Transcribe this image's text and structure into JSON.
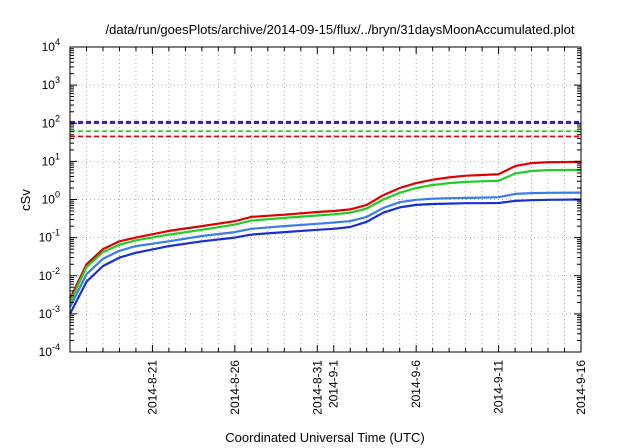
{
  "chart_data": {
    "type": "line",
    "title": "/data/run/goesPlots/archive/2014-09-15/flux/../bryn/31daysMoonAccumulated.plot",
    "xlabel": "Coordinated Universal Time (UTC)",
    "ylabel": "cSv",
    "y_scale": "log",
    "ylim": [
      0.0001,
      10000
    ],
    "xlim": [
      "2014-08-16",
      "2014-09-16"
    ],
    "grid": true,
    "legend": "none",
    "y_ticks": [
      {
        "base": "10",
        "exp": "-4",
        "value": 0.0001
      },
      {
        "base": "10",
        "exp": "-3",
        "value": 0.001
      },
      {
        "base": "10",
        "exp": "-2",
        "value": 0.01
      },
      {
        "base": "10",
        "exp": "-1",
        "value": 0.1
      },
      {
        "base": "10",
        "exp": "0",
        "value": 1
      },
      {
        "base": "10",
        "exp": "1",
        "value": 10
      },
      {
        "base": "10",
        "exp": "2",
        "value": 100
      },
      {
        "base": "10",
        "exp": "3",
        "value": 1000
      },
      {
        "base": "10",
        "exp": "4",
        "value": 10000
      }
    ],
    "x_ticks": [
      {
        "label": "2014-8-21",
        "date": "2014-08-21"
      },
      {
        "label": "2014-8-26",
        "date": "2014-08-26"
      },
      {
        "label": "2014-8-31",
        "date": "2014-08-31"
      },
      {
        "label": "2014-9-1",
        "date": "2014-09-01"
      },
      {
        "label": "2014-9-6",
        "date": "2014-09-06"
      },
      {
        "label": "2014-9-11",
        "date": "2014-09-11"
      },
      {
        "label": "2014-9-16",
        "date": "2014-09-16"
      }
    ],
    "reference_lines": [
      {
        "value": 110,
        "color": "#6600cc"
      },
      {
        "value": 100,
        "color": "#1f2fd6"
      },
      {
        "value": 62,
        "color": "#22cc22"
      },
      {
        "value": 45,
        "color": "#e00000"
      }
    ],
    "series": [
      {
        "color": "#e00000",
        "points": [
          [
            "2014-08-16",
            0.0025
          ],
          [
            "2014-08-17",
            0.02
          ],
          [
            "2014-08-18",
            0.05
          ],
          [
            "2014-08-19",
            0.08
          ],
          [
            "2014-08-20",
            0.1
          ],
          [
            "2014-08-22",
            0.15
          ],
          [
            "2014-08-24",
            0.2
          ],
          [
            "2014-08-26",
            0.27
          ],
          [
            "2014-08-27",
            0.35
          ],
          [
            "2014-08-29",
            0.4
          ],
          [
            "2014-08-31",
            0.47
          ],
          [
            "2014-09-01",
            0.5
          ],
          [
            "2014-09-02",
            0.55
          ],
          [
            "2014-09-03",
            0.72
          ],
          [
            "2014-09-04",
            1.3
          ],
          [
            "2014-09-05",
            2.0
          ],
          [
            "2014-09-06",
            2.7
          ],
          [
            "2014-09-07",
            3.3
          ],
          [
            "2014-09-08",
            3.8
          ],
          [
            "2014-09-09",
            4.2
          ],
          [
            "2014-09-10",
            4.4
          ],
          [
            "2014-09-11",
            4.6
          ],
          [
            "2014-09-12",
            7.5
          ],
          [
            "2014-09-13",
            9.0
          ],
          [
            "2014-09-14",
            9.5
          ],
          [
            "2014-09-16",
            9.7
          ]
        ]
      },
      {
        "color": "#22cc22",
        "points": [
          [
            "2014-08-16",
            0.002
          ],
          [
            "2014-08-17",
            0.017
          ],
          [
            "2014-08-18",
            0.042
          ],
          [
            "2014-08-19",
            0.065
          ],
          [
            "2014-08-20",
            0.085
          ],
          [
            "2014-08-22",
            0.12
          ],
          [
            "2014-08-24",
            0.16
          ],
          [
            "2014-08-26",
            0.22
          ],
          [
            "2014-08-27",
            0.28
          ],
          [
            "2014-08-29",
            0.33
          ],
          [
            "2014-08-31",
            0.38
          ],
          [
            "2014-09-01",
            0.41
          ],
          [
            "2014-09-02",
            0.45
          ],
          [
            "2014-09-03",
            0.58
          ],
          [
            "2014-09-04",
            1.0
          ],
          [
            "2014-09-05",
            1.5
          ],
          [
            "2014-09-06",
            2.0
          ],
          [
            "2014-09-07",
            2.4
          ],
          [
            "2014-09-08",
            2.7
          ],
          [
            "2014-09-09",
            2.9
          ],
          [
            "2014-09-10",
            3.0
          ],
          [
            "2014-09-11",
            3.1
          ],
          [
            "2014-09-12",
            4.8
          ],
          [
            "2014-09-13",
            5.6
          ],
          [
            "2014-09-14",
            5.9
          ],
          [
            "2014-09-16",
            6.0
          ]
        ]
      },
      {
        "color": "#3a7ce8",
        "points": [
          [
            "2014-08-16",
            0.0015
          ],
          [
            "2014-08-17",
            0.011
          ],
          [
            "2014-08-18",
            0.028
          ],
          [
            "2014-08-19",
            0.045
          ],
          [
            "2014-08-20",
            0.06
          ],
          [
            "2014-08-22",
            0.08
          ],
          [
            "2014-08-24",
            0.11
          ],
          [
            "2014-08-26",
            0.14
          ],
          [
            "2014-08-27",
            0.17
          ],
          [
            "2014-08-29",
            0.2
          ],
          [
            "2014-08-31",
            0.23
          ],
          [
            "2014-09-01",
            0.25
          ],
          [
            "2014-09-02",
            0.27
          ],
          [
            "2014-09-03",
            0.35
          ],
          [
            "2014-09-04",
            0.6
          ],
          [
            "2014-09-05",
            0.85
          ],
          [
            "2014-09-06",
            0.98
          ],
          [
            "2014-09-07",
            1.05
          ],
          [
            "2014-09-08",
            1.08
          ],
          [
            "2014-09-09",
            1.1
          ],
          [
            "2014-09-10",
            1.12
          ],
          [
            "2014-09-11",
            1.15
          ],
          [
            "2014-09-12",
            1.4
          ],
          [
            "2014-09-13",
            1.47
          ],
          [
            "2014-09-14",
            1.5
          ],
          [
            "2014-09-16",
            1.52
          ]
        ]
      },
      {
        "color": "#1a2fd0",
        "points": [
          [
            "2014-08-16",
            0.001
          ],
          [
            "2014-08-17",
            0.007
          ],
          [
            "2014-08-18",
            0.018
          ],
          [
            "2014-08-19",
            0.03
          ],
          [
            "2014-08-20",
            0.04
          ],
          [
            "2014-08-22",
            0.06
          ],
          [
            "2014-08-24",
            0.08
          ],
          [
            "2014-08-26",
            0.1
          ],
          [
            "2014-08-27",
            0.12
          ],
          [
            "2014-08-29",
            0.14
          ],
          [
            "2014-08-31",
            0.16
          ],
          [
            "2014-09-01",
            0.17
          ],
          [
            "2014-09-02",
            0.19
          ],
          [
            "2014-09-03",
            0.26
          ],
          [
            "2014-09-04",
            0.45
          ],
          [
            "2014-09-05",
            0.62
          ],
          [
            "2014-09-06",
            0.72
          ],
          [
            "2014-09-07",
            0.76
          ],
          [
            "2014-09-08",
            0.78
          ],
          [
            "2014-09-09",
            0.8
          ],
          [
            "2014-09-10",
            0.8
          ],
          [
            "2014-09-11",
            0.81
          ],
          [
            "2014-09-12",
            0.92
          ],
          [
            "2014-09-13",
            0.96
          ],
          [
            "2014-09-14",
            0.98
          ],
          [
            "2014-09-16",
            1.0
          ]
        ]
      }
    ]
  }
}
